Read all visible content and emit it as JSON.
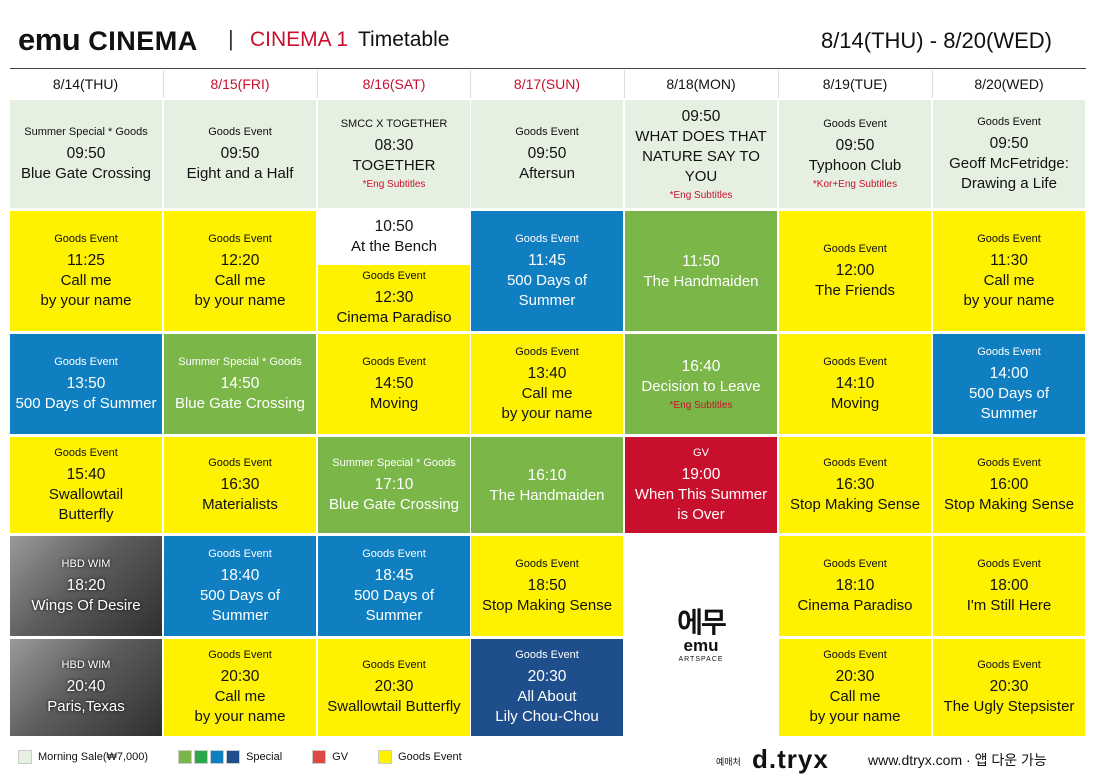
{
  "header": {
    "logo": "emu",
    "name": "CINEMA",
    "screen": "CINEMA 1",
    "label": "Timetable",
    "dates": "8/14(THU) - 8/20(WED)"
  },
  "days": [
    {
      "label": "8/14(THU)",
      "color": "#111111"
    },
    {
      "label": "8/15(FRI)",
      "color": "#c8102e"
    },
    {
      "label": "8/16(SAT)",
      "color": "#c8102e"
    },
    {
      "label": "8/17(SUN)",
      "color": "#c8102e"
    },
    {
      "label": "8/18(MON)",
      "color": "#111111"
    },
    {
      "label": "8/19(TUE)",
      "color": "#111111"
    },
    {
      "label": "8/20(WED)",
      "color": "#111111"
    }
  ],
  "columns": [
    [
      {
        "color": "#e6f0e1",
        "tag": "Summer Special * Goods",
        "time": "09:50",
        "title": "Blue Gate Crossing"
      },
      {
        "color": "#fff200",
        "tag": "Goods Event",
        "time": "11:25",
        "title": "Call me\nby your name"
      },
      {
        "color": "#0f7fc1",
        "tag": "Goods Event",
        "time": "13:50",
        "title": "500 Days of Summer"
      },
      {
        "color": "#fff200",
        "tag": "Goods Event",
        "time": "15:40",
        "title": "Swallowtail\nButterfly"
      },
      {
        "color": "photo",
        "tag": "HBD WIM",
        "time": "18:20",
        "title": "Wings Of Desire"
      },
      {
        "color": "photo",
        "tag": "HBD WIM",
        "time": "20:40",
        "title": "Paris,Texas"
      }
    ],
    [
      {
        "color": "#e6f0e1",
        "tag": "Goods Event",
        "time": "09:50",
        "title": "Eight and a Half"
      },
      {
        "color": "#fff200",
        "tag": "Goods Event",
        "time": "12:20",
        "title": "Call me\nby your name"
      },
      {
        "color": "#7ab648",
        "tag": "Summer Special * Goods",
        "time": "14:50",
        "title": "Blue Gate Crossing"
      },
      {
        "color": "#fff200",
        "tag": "Goods Event",
        "time": "16:30",
        "title": "Materialists"
      },
      {
        "color": "#0f7fc1",
        "tag": "Goods Event",
        "time": "18:40",
        "title": "500 Days of\nSummer"
      },
      {
        "color": "#fff200",
        "tag": "Goods Event",
        "time": "20:30",
        "title": "Call me\nby your name"
      }
    ],
    [
      {
        "color": "#e6f0e1",
        "tag": "SMCC X TOGETHER",
        "time": "08:30",
        "title": "TOGETHER",
        "note": "*Eng Subtitles"
      },
      {
        "color": "#ffffff",
        "time": "10:50",
        "title": "At the Bench"
      },
      {
        "color": "#fff200",
        "tag": "Goods Event",
        "time": "12:30",
        "title": "Cinema Paradiso"
      },
      {
        "color": "#fff200",
        "tag": "Goods Event",
        "time": "14:50",
        "title": "Moving"
      },
      {
        "color": "#7ab648",
        "tag": "Summer Special * Goods",
        "time": "17:10",
        "title": "Blue Gate Crossing"
      },
      {
        "color": "#0f7fc1",
        "tag": "Goods Event",
        "time": "18:45",
        "title": "500 Days of\nSummer"
      },
      {
        "color": "#fff200",
        "tag": "Goods Event",
        "time": "20:30",
        "title": "Swallowtail Butterfly"
      }
    ],
    [
      {
        "color": "#e6f0e1",
        "tag": "Goods Event",
        "time": "09:50",
        "title": "Aftersun"
      },
      {
        "color": "#0f7fc1",
        "tag": "Goods Event",
        "time": "11:45",
        "title": "500 Days of\nSummer"
      },
      {
        "color": "#fff200",
        "tag": "Goods Event",
        "time": "13:40",
        "title": "Call me\nby your name"
      },
      {
        "color": "#7ab648",
        "time": "16:10",
        "title": "The Handmaiden"
      },
      {
        "color": "#fff200",
        "tag": "Goods Event",
        "time": "18:50",
        "title": "Stop Making Sense"
      },
      {
        "color": "#1f4e8c",
        "tag": "Goods Event",
        "time": "20:30",
        "title": "All About\nLily Chou-Chou"
      }
    ],
    [
      {
        "color": "#e6f0e1",
        "time": "09:50",
        "title": "WHAT DOES THAT\nNATURE SAY TO YOU",
        "note": "*Eng Subtitles"
      },
      {
        "color": "#7ab648",
        "time": "11:50",
        "title": "The Handmaiden"
      },
      {
        "color": "#7ab648",
        "time": "16:40",
        "title": "Decision to Leave",
        "note": "*Eng Subtitles"
      },
      {
        "color": "#c8102e",
        "tag": "GV",
        "time": "19:00",
        "title": "When This Summer\nis Over"
      },
      {
        "color": "#ffffff",
        "logo": {
          "kr": "에무",
          "en": "emu",
          "sub": "ARTSPACE"
        }
      }
    ],
    [
      {
        "color": "#e6f0e1",
        "tag": "Goods Event",
        "time": "09:50",
        "title": "Typhoon Club",
        "note": "*Kor+Eng Subtitles"
      },
      {
        "color": "#fff200",
        "tag": "Goods Event",
        "time": "12:00",
        "title": "The Friends"
      },
      {
        "color": "#fff200",
        "tag": "Goods Event",
        "time": "14:10",
        "title": "Moving"
      },
      {
        "color": "#fff200",
        "tag": "Goods Event",
        "time": "16:30",
        "title": "Stop Making Sense"
      },
      {
        "color": "#fff200",
        "tag": "Goods Event",
        "time": "18:10",
        "title": "Cinema Paradiso"
      },
      {
        "color": "#fff200",
        "tag": "Goods Event",
        "time": "20:30",
        "title": "Call me\nby your name"
      }
    ],
    [
      {
        "color": "#e6f0e1",
        "tag": "Goods Event",
        "time": "09:50",
        "title": "Geoff McFetridge:\nDrawing a Life"
      },
      {
        "color": "#fff200",
        "tag": "Goods Event",
        "time": "11:30",
        "title": "Call me\nby your name"
      },
      {
        "color": "#0f7fc1",
        "tag": "Goods Event",
        "time": "14:00",
        "title": "500 Days of\nSummer"
      },
      {
        "color": "#fff200",
        "tag": "Goods Event",
        "time": "16:00",
        "title": "Stop Making Sense"
      },
      {
        "color": "#fff200",
        "tag": "Goods Event",
        "time": "18:00",
        "title": "I'm Still Here"
      },
      {
        "color": "#fff200",
        "tag": "Goods Event",
        "time": "20:30",
        "title": "The Ugly Stepsister"
      }
    ]
  ],
  "legend": [
    {
      "label": "Morning Sale(₩7,000)",
      "colors": [
        "#e6f0e1"
      ]
    },
    {
      "label": "Special",
      "colors": [
        "#7ab648",
        "#2aa84a",
        "#0f7fc1",
        "#1f4e8c"
      ]
    },
    {
      "label": "GV",
      "colors": [
        "#e04848"
      ]
    },
    {
      "label": "Goods Event",
      "colors": [
        "#fff200"
      ]
    }
  ],
  "footer": {
    "booking_label": "예매처",
    "booking_brand": "d.tryx",
    "site": "www.dtryx.com · 앱 다운 가능"
  }
}
